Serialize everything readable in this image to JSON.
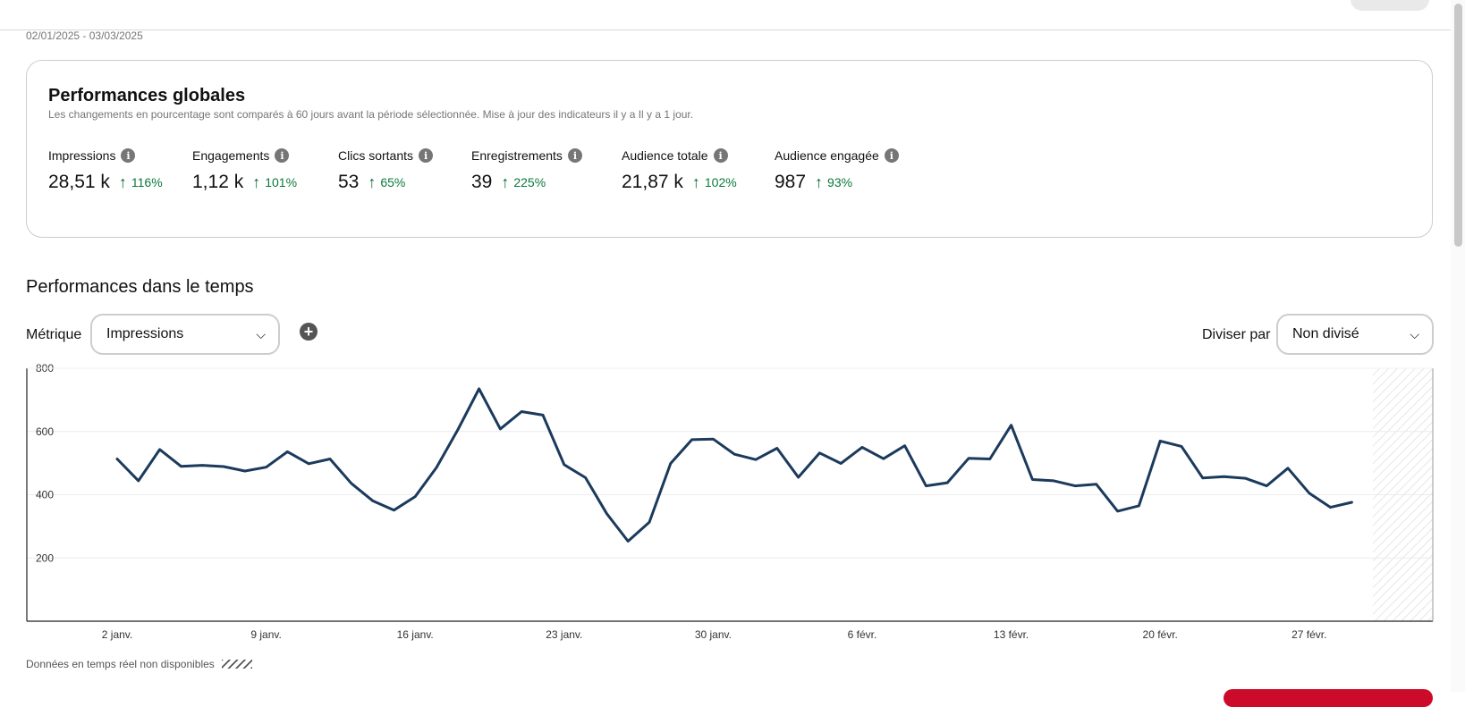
{
  "date_range": "02/01/2025 - 03/03/2025",
  "overview": {
    "title": "Performances globales",
    "subtitle": "Les changements en pourcentage sont comparés à 60 jours avant la période sélectionnée. Mise à jour des indicateurs il y a Il y a 1 jour.",
    "metrics": [
      {
        "label": "Impressions",
        "value": "28,51 k",
        "change": "116%"
      },
      {
        "label": "Engagements",
        "value": "1,12 k",
        "change": "101%"
      },
      {
        "label": "Clics sortants",
        "value": "53",
        "change": "65%"
      },
      {
        "label": "Enregistrements",
        "value": "39",
        "change": "225%"
      },
      {
        "label": "Audience totale",
        "value": "21,87 k",
        "change": "102%"
      },
      {
        "label": "Audience engagée",
        "value": "987",
        "change": "93%"
      }
    ],
    "info_icon": "info-icon",
    "change_icon": "arrow-up-icon",
    "positive_color": "#0a7a3a"
  },
  "over_time": {
    "title": "Performances dans le temps",
    "metric_label": "Métrique",
    "metric_value": "Impressions",
    "add_icon": "plus-circle-icon",
    "divide_label": "Diviser par",
    "divide_value": "Non divisé",
    "dropdown_icon": "chevron-down-icon"
  },
  "realtime_note": "Données en temps réel non disponibles",
  "chart_data": {
    "type": "line",
    "title": "",
    "xlabel": "",
    "ylabel": "",
    "x_ticks": [
      "2 janv.",
      "9 janv.",
      "16 janv.",
      "23 janv.",
      "30 janv.",
      "6 févr.",
      "13 févr.",
      "20 févr.",
      "27 févr."
    ],
    "yticks": [
      200,
      400,
      600,
      800
    ],
    "ylim": [
      0,
      800
    ],
    "xlim_days": [
      1,
      60
    ],
    "grid": true,
    "line_color": "#1b3a5c",
    "hatched_region": "realtime unavailable (right edge)",
    "series": [
      {
        "values": [
          513,
          444,
          543,
          490,
          493,
          489,
          475,
          487,
          536,
          498,
          513,
          436,
          381,
          351,
          394,
          486,
          605,
          735,
          608,
          663,
          652,
          495,
          454,
          340,
          253,
          313,
          499,
          574,
          576,
          528,
          511,
          547,
          455,
          532,
          499,
          550,
          514,
          555,
          428,
          438,
          515,
          513,
          620,
          448,
          444,
          428,
          433,
          348,
          365,
          570,
          553,
          453,
          457,
          452,
          428,
          484,
          405,
          360,
          376
        ]
      }
    ]
  }
}
